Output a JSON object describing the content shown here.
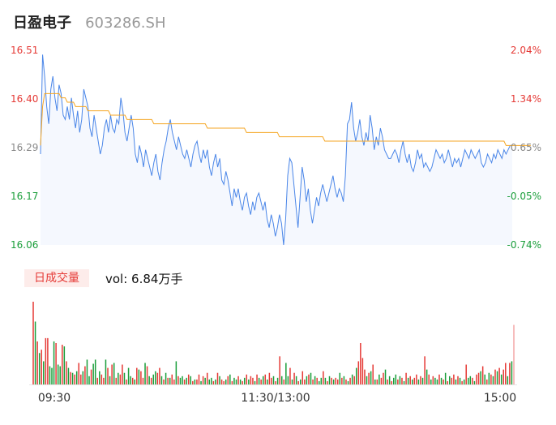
{
  "header": {
    "name": "日盈电子",
    "code": "603286.SH"
  },
  "volume_panel": {
    "label": "日成交量",
    "value": "vol: 6.84万手"
  },
  "colors": {
    "price_line": "#4a86e8",
    "avg_line": "#f5a623",
    "up": "#e53935",
    "down": "#1a9e3a",
    "neutral": "#888888",
    "area_fill": "#f5f8fe"
  },
  "chart_data": [
    {
      "type": "line",
      "title": "",
      "price_ticks": [
        "16.51",
        "16.40",
        "16.29",
        "16.17",
        "16.06"
      ],
      "pct_ticks": [
        "2.04%",
        "1.34%",
        "0.65%",
        "-0.05%",
        "-0.74%"
      ],
      "ylim": [
        16.06,
        16.51
      ],
      "x_ticks": [
        "09:30",
        "11:30/13:00",
        "15:00"
      ],
      "series": [
        {
          "key": "price",
          "values": [
            16.27,
            16.5,
            16.45,
            16.38,
            16.34,
            16.42,
            16.45,
            16.4,
            16.37,
            16.43,
            16.41,
            16.36,
            16.35,
            16.38,
            16.35,
            16.4,
            16.36,
            16.33,
            16.37,
            16.32,
            16.35,
            16.42,
            16.4,
            16.38,
            16.33,
            16.31,
            16.36,
            16.33,
            16.3,
            16.27,
            16.29,
            16.33,
            16.35,
            16.32,
            16.36,
            16.33,
            16.32,
            16.35,
            16.34,
            16.4,
            16.37,
            16.32,
            16.3,
            16.33,
            16.36,
            16.33,
            16.27,
            16.25,
            16.29,
            16.27,
            16.24,
            16.28,
            16.26,
            16.24,
            16.22,
            16.25,
            16.27,
            16.23,
            16.21,
            16.25,
            16.28,
            16.3,
            16.33,
            16.35,
            16.32,
            16.3,
            16.28,
            16.31,
            16.29,
            16.27,
            16.26,
            16.28,
            16.26,
            16.24,
            16.27,
            16.29,
            16.3,
            16.27,
            16.25,
            16.28,
            16.26,
            16.28,
            16.24,
            16.22,
            16.25,
            16.27,
            16.24,
            16.26,
            16.21,
            16.2,
            16.23,
            16.21,
            16.18,
            16.15,
            16.19,
            16.17,
            16.19,
            16.16,
            16.14,
            16.17,
            16.18,
            16.15,
            16.13,
            16.16,
            16.14,
            16.17,
            16.18,
            16.16,
            16.14,
            16.16,
            16.12,
            16.1,
            16.13,
            16.11,
            16.08,
            16.1,
            16.13,
            16.11,
            16.06,
            16.12,
            16.22,
            16.26,
            16.25,
            16.2,
            16.15,
            16.1,
            16.17,
            16.24,
            16.21,
            16.16,
            16.19,
            16.14,
            16.11,
            16.14,
            16.17,
            16.15,
            16.18,
            16.2,
            16.18,
            16.16,
            16.18,
            16.2,
            16.22,
            16.19,
            16.17,
            16.19,
            16.18,
            16.16,
            16.22,
            16.34,
            16.35,
            16.39,
            16.33,
            16.3,
            16.32,
            16.35,
            16.31,
            16.29,
            16.32,
            16.3,
            16.36,
            16.33,
            16.28,
            16.31,
            16.29,
            16.33,
            16.31,
            16.28,
            16.27,
            16.26,
            16.26,
            16.27,
            16.28,
            16.27,
            16.25,
            16.28,
            16.3,
            16.27,
            16.25,
            16.27,
            16.24,
            16.23,
            16.25,
            16.28,
            16.26,
            16.27,
            16.24,
            16.25,
            16.24,
            16.23,
            16.24,
            16.26,
            16.28,
            16.27,
            16.26,
            16.27,
            16.25,
            16.26,
            16.28,
            16.26,
            16.24,
            16.26,
            16.25,
            16.26,
            16.24,
            16.26,
            16.28,
            16.27,
            16.26,
            16.28,
            16.27,
            16.26,
            16.27,
            16.28,
            16.25,
            16.24,
            16.25,
            16.27,
            16.26,
            16.25,
            16.27,
            16.26,
            16.28,
            16.27,
            16.26,
            16.28,
            16.27,
            16.28,
            16.29,
            16.29
          ]
        },
        {
          "key": "avg",
          "values": [
            16.29,
            16.38,
            16.41,
            16.41,
            16.41,
            16.41,
            16.41,
            16.41,
            16.41,
            16.41,
            16.4,
            16.4,
            16.4,
            16.39,
            16.39,
            16.39,
            16.39,
            16.38,
            16.38,
            16.38,
            16.38,
            16.38,
            16.38,
            16.37,
            16.37,
            16.37,
            16.37,
            16.37,
            16.37,
            16.37,
            16.37,
            16.37,
            16.37,
            16.37,
            16.36,
            16.36,
            16.36,
            16.36,
            16.36,
            16.36,
            16.36,
            16.36,
            16.35,
            16.35,
            16.35,
            16.35,
            16.35,
            16.35,
            16.35,
            16.35,
            16.35,
            16.35,
            16.35,
            16.35,
            16.35,
            16.34,
            16.34,
            16.34,
            16.34,
            16.34,
            16.34,
            16.34,
            16.34,
            16.34,
            16.34,
            16.34,
            16.34,
            16.34,
            16.34,
            16.34,
            16.34,
            16.34,
            16.34,
            16.34,
            16.34,
            16.34,
            16.34,
            16.34,
            16.34,
            16.34,
            16.34,
            16.33,
            16.33,
            16.33,
            16.33,
            16.33,
            16.33,
            16.33,
            16.33,
            16.33,
            16.33,
            16.33,
            16.33,
            16.33,
            16.33,
            16.33,
            16.33,
            16.33,
            16.33,
            16.33,
            16.32,
            16.32,
            16.32,
            16.32,
            16.32,
            16.32,
            16.32,
            16.32,
            16.32,
            16.32,
            16.32,
            16.32,
            16.32,
            16.32,
            16.32,
            16.32,
            16.31,
            16.31,
            16.31,
            16.31,
            16.31,
            16.31,
            16.31,
            16.31,
            16.31,
            16.31,
            16.31,
            16.31,
            16.31,
            16.31,
            16.31,
            16.31,
            16.31,
            16.31,
            16.31,
            16.31,
            16.31,
            16.31,
            16.3,
            16.3,
            16.3,
            16.3,
            16.3,
            16.3,
            16.3,
            16.3,
            16.3,
            16.3,
            16.3,
            16.3,
            16.3,
            16.3,
            16.3,
            16.3,
            16.3,
            16.3,
            16.3,
            16.3,
            16.3,
            16.3,
            16.3,
            16.3,
            16.3,
            16.3,
            16.3,
            16.3,
            16.3,
            16.3,
            16.3,
            16.3,
            16.3,
            16.3,
            16.3,
            16.3,
            16.3,
            16.3,
            16.3,
            16.3,
            16.3,
            16.3,
            16.3,
            16.3,
            16.3,
            16.3,
            16.3,
            16.3,
            16.3,
            16.3,
            16.3,
            16.3,
            16.3,
            16.3,
            16.3,
            16.3,
            16.3,
            16.3,
            16.3,
            16.3,
            16.3,
            16.3,
            16.3,
            16.3,
            16.3,
            16.3,
            16.3,
            16.3,
            16.3,
            16.3,
            16.3,
            16.3,
            16.3,
            16.3,
            16.3,
            16.3,
            16.3,
            16.3,
            16.3,
            16.3,
            16.3,
            16.3,
            16.3,
            16.3,
            16.3,
            16.3,
            16.3,
            16.3,
            16.29,
            16.29,
            16.29,
            16.29,
            16.29,
            16.29,
            16.29,
            16.29,
            16.29,
            16.29,
            16.29,
            16.29,
            16.29
          ]
        }
      ]
    },
    {
      "type": "bar",
      "title": "",
      "ylim": [
        0,
        100
      ],
      "values": [
        100,
        76,
        52,
        38,
        42,
        28,
        56,
        56,
        22,
        20,
        52,
        50,
        24,
        22,
        48,
        46,
        28,
        20,
        15,
        14,
        12,
        16,
        26,
        12,
        16,
        22,
        30,
        10,
        18,
        25,
        30,
        8,
        16,
        12,
        8,
        30,
        20,
        10,
        24,
        26,
        8,
        14,
        12,
        24,
        14,
        6,
        20,
        10,
        8,
        6,
        20,
        18,
        16,
        8,
        26,
        22,
        10,
        8,
        12,
        16,
        14,
        20,
        10,
        6,
        14,
        8,
        8,
        12,
        6,
        28,
        10,
        8,
        10,
        6,
        8,
        12,
        10,
        4,
        6,
        6,
        12,
        4,
        10,
        8,
        14,
        6,
        8,
        4,
        6,
        14,
        10,
        6,
        4,
        6,
        10,
        12,
        4,
        8,
        6,
        10,
        6,
        4,
        8,
        12,
        6,
        10,
        8,
        4,
        12,
        8,
        6,
        10,
        12,
        6,
        14,
        8,
        10,
        4,
        8,
        34,
        10,
        6,
        26,
        10,
        20,
        6,
        14,
        10,
        4,
        6,
        16,
        6,
        10,
        12,
        14,
        6,
        10,
        8,
        4,
        8,
        16,
        8,
        4,
        10,
        8,
        6,
        8,
        6,
        14,
        8,
        10,
        6,
        4,
        8,
        12,
        10,
        20,
        28,
        50,
        32,
        18,
        10,
        14,
        16,
        24,
        6,
        6,
        12,
        8,
        14,
        18,
        6,
        10,
        4,
        8,
        12,
        6,
        10,
        8,
        4,
        14,
        8,
        10,
        6,
        8,
        12,
        6,
        10,
        8,
        34,
        18,
        12,
        6,
        10,
        8,
        6,
        12,
        8,
        6,
        14,
        4,
        10,
        8,
        12,
        6,
        10,
        8,
        4,
        6,
        24,
        8,
        10,
        8,
        4,
        12,
        14,
        16,
        22,
        12,
        6,
        14,
        12,
        10,
        18,
        16,
        20,
        12,
        18,
        26,
        10,
        26,
        28,
        72
      ],
      "colors": [
        1,
        0,
        1,
        0,
        1,
        0,
        1,
        1,
        0,
        0,
        0,
        1,
        0,
        0,
        1,
        0,
        1,
        0,
        1,
        0,
        1,
        0,
        1,
        1,
        0,
        1,
        0,
        0,
        1,
        0,
        0,
        1,
        0,
        1,
        1,
        0,
        1,
        0,
        1,
        0,
        1,
        0,
        1,
        1,
        0,
        1,
        0,
        0,
        1,
        0,
        1,
        0,
        1,
        1,
        0,
        1,
        0,
        1,
        0,
        0,
        1,
        1,
        0,
        1,
        0,
        1,
        0,
        1,
        1,
        0,
        1,
        0,
        0,
        1,
        0,
        1,
        0,
        1,
        0,
        1,
        1,
        0,
        1,
        0,
        1,
        0,
        0,
        1,
        0,
        1,
        0,
        1,
        1,
        0,
        1,
        0,
        1,
        0,
        0,
        1,
        0,
        1,
        0,
        1,
        0,
        1,
        1,
        0,
        1,
        0,
        1,
        0,
        1,
        0,
        1,
        1,
        0,
        1,
        0,
        1,
        0,
        1,
        0,
        0,
        1,
        0,
        1,
        0,
        1,
        0,
        1,
        1,
        0,
        1,
        0,
        1,
        0,
        1,
        0,
        0,
        1,
        0,
        1,
        0,
        1,
        0,
        1,
        1,
        0,
        1,
        0,
        1,
        0,
        1,
        0,
        1,
        0,
        1,
        1,
        1,
        1,
        0,
        1,
        0,
        1,
        0,
        1,
        0,
        1,
        1,
        0,
        1,
        0,
        1,
        0,
        0,
        1,
        0,
        1,
        0,
        1,
        0,
        1,
        0,
        1,
        1,
        0,
        1,
        0,
        1,
        0,
        1,
        0,
        1,
        0,
        0,
        1,
        0,
        1,
        0,
        1,
        0,
        1,
        1,
        0,
        1,
        0,
        1,
        0,
        1,
        0,
        0,
        1,
        0,
        1,
        1,
        0,
        1,
        0,
        1,
        0,
        1,
        0,
        1,
        0,
        1,
        0,
        1,
        1,
        0,
        1,
        0,
        1,
        0,
        1,
        0,
        1,
        1,
        1
      ]
    }
  ]
}
